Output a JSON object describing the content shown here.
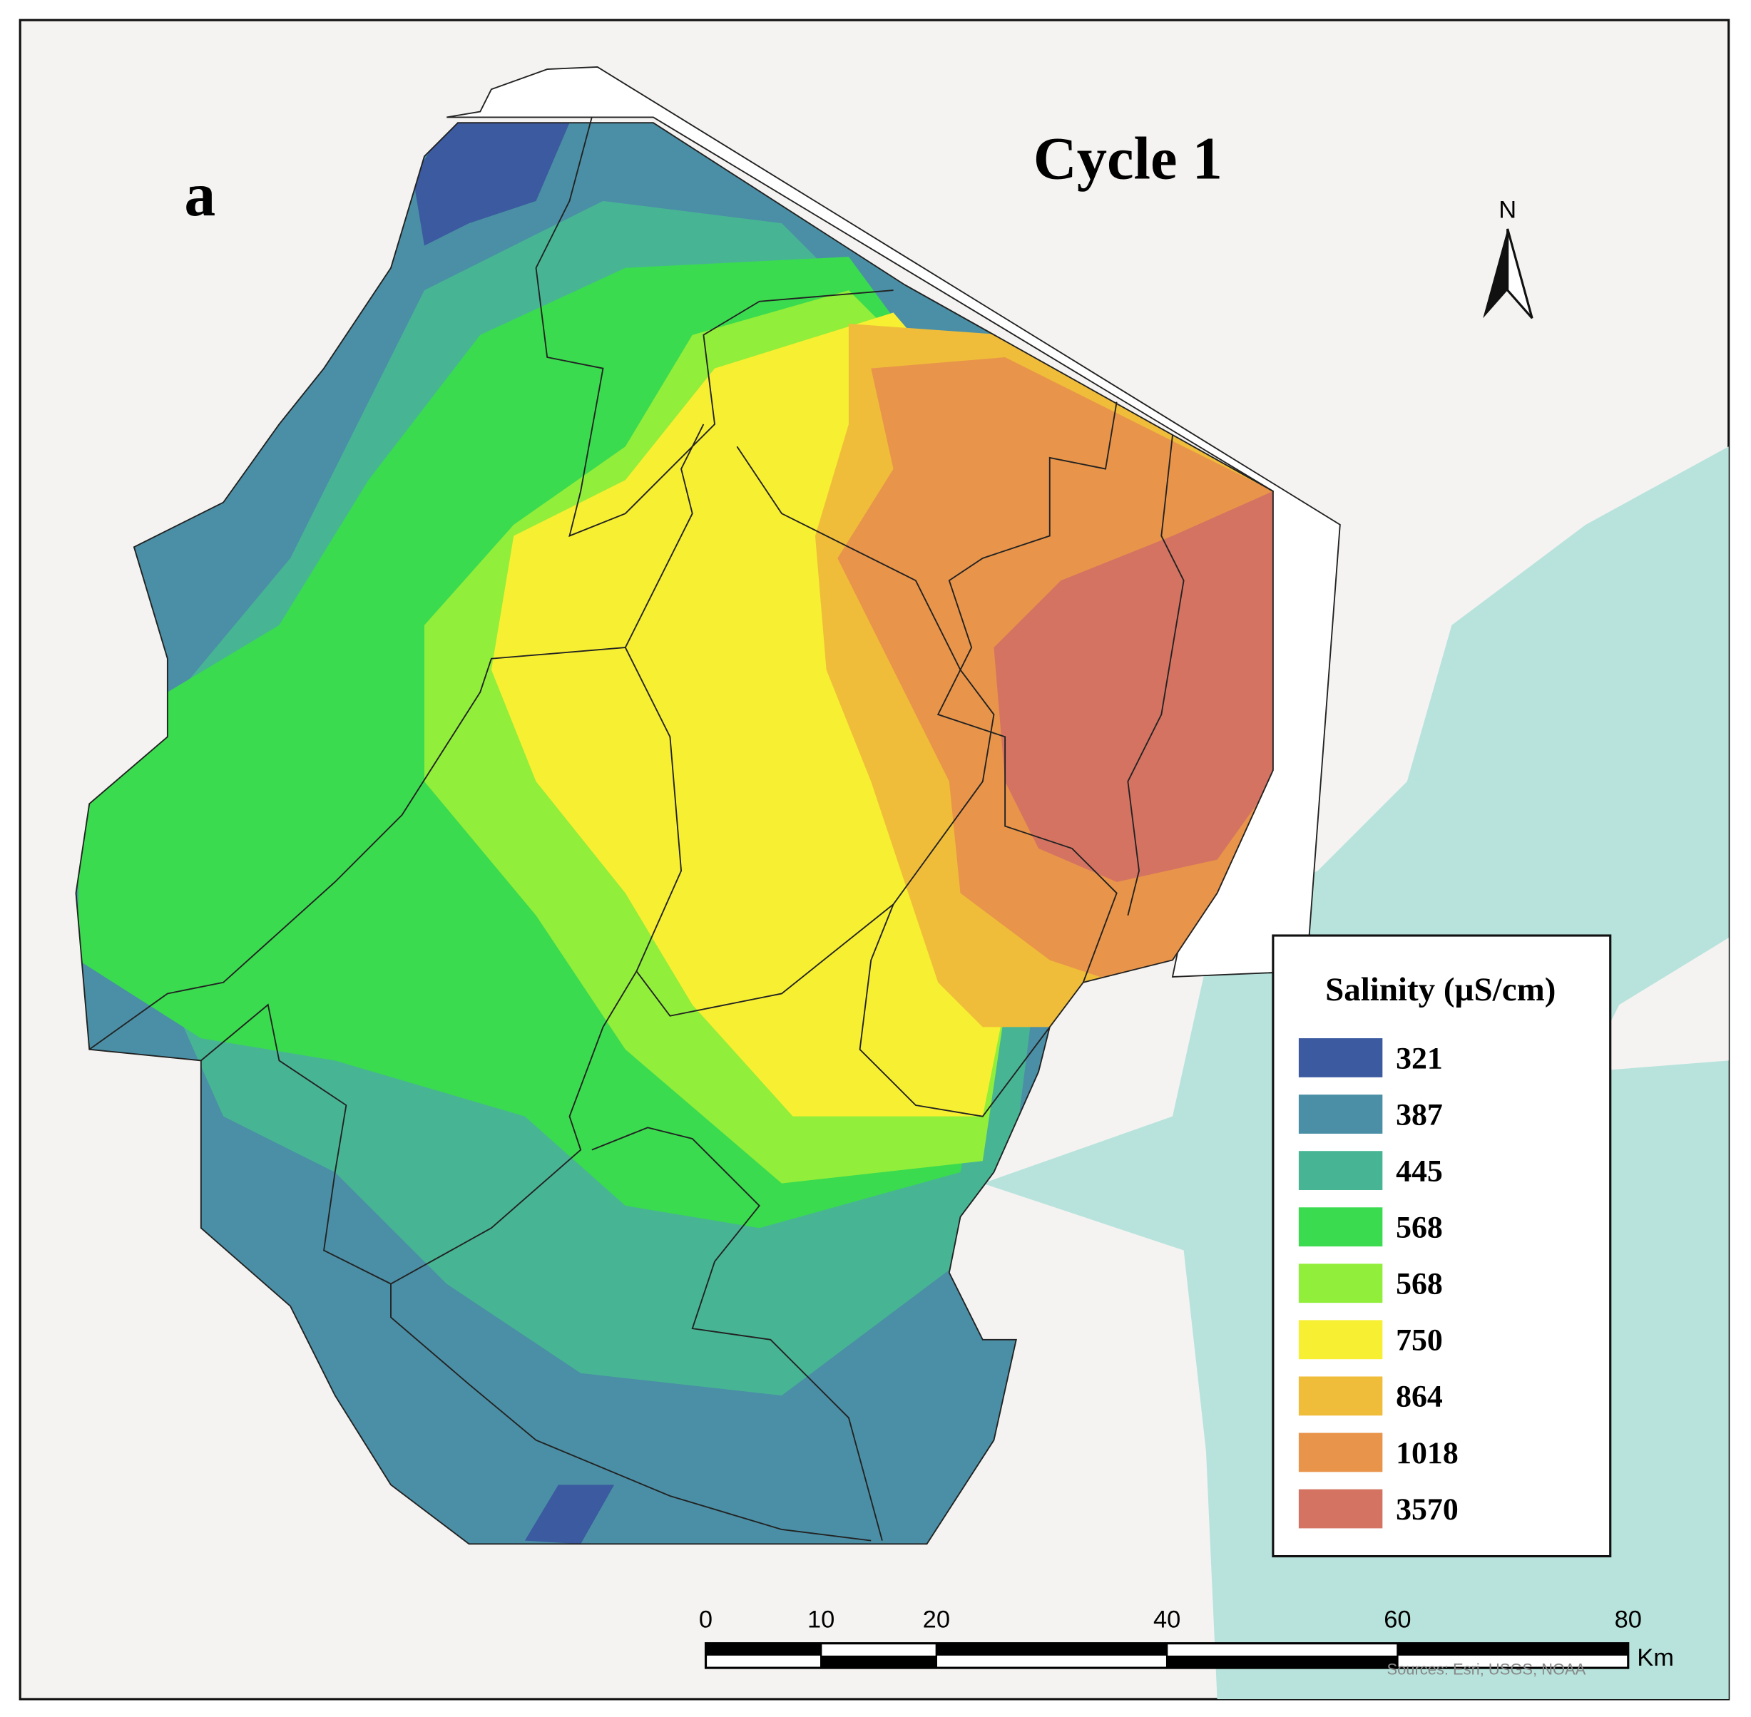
{
  "panel_label": "a",
  "title": "Cycle 1",
  "north_arrow": "N",
  "legend": {
    "title": "Salinity (µS/cm)",
    "items": [
      {
        "label": "321",
        "color": "#3b5aa0"
      },
      {
        "label": "387",
        "color": "#4a8fa6"
      },
      {
        "label": "445",
        "color": "#47b594"
      },
      {
        "label": "568",
        "color": "#3adb4f"
      },
      {
        "label": "568",
        "color": "#91ee3a"
      },
      {
        "label": "750",
        "color": "#f7ef32"
      },
      {
        "label": " 864",
        "color": "#f0bd3a"
      },
      {
        "label": "1018",
        "color": "#e8944a"
      },
      {
        "label": "3570",
        "color": "#d47362"
      }
    ]
  },
  "scale_bar": {
    "ticks": [
      0,
      10,
      20,
      40,
      60,
      80
    ],
    "unit": "Km"
  },
  "attribution": "Sources: Esri, USGS, NOAA"
}
